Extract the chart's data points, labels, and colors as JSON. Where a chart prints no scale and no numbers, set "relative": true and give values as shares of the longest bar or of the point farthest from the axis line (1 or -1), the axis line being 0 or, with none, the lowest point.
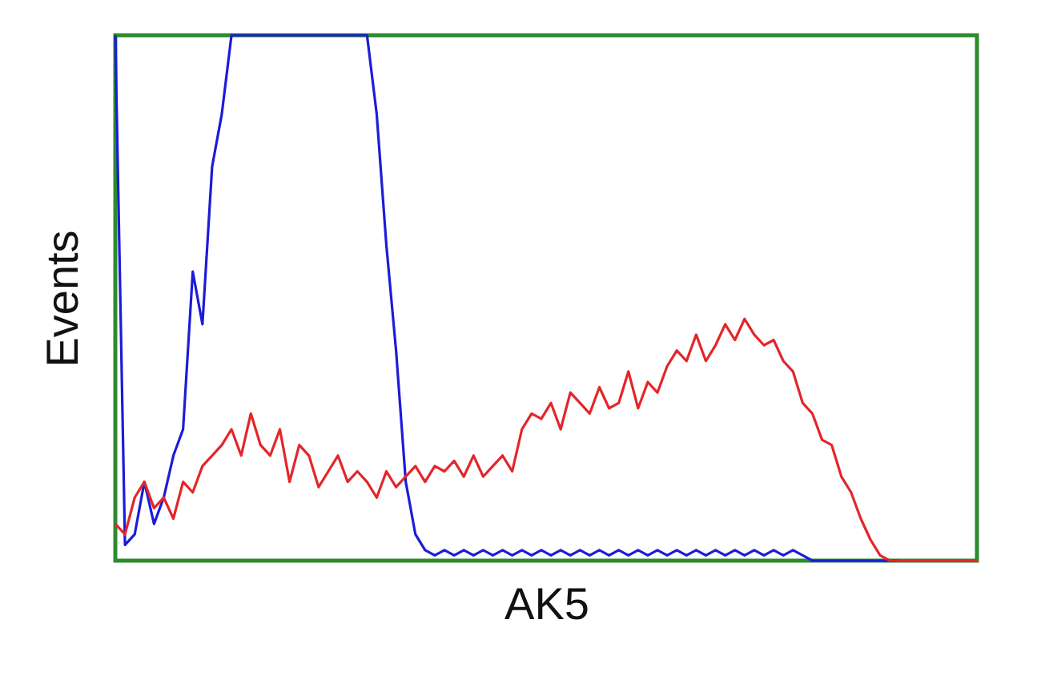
{
  "chart_data": {
    "type": "line",
    "xlabel": "AK5",
    "ylabel": "Events",
    "relative": true,
    "tick_labels": false,
    "grid": false,
    "categories": [
      null,
      null,
      null,
      null,
      null,
      null,
      null,
      null,
      null,
      null,
      null,
      null,
      null,
      null,
      null,
      null,
      null,
      null,
      null,
      null,
      null,
      null,
      null,
      null,
      null,
      null,
      null,
      null,
      null,
      null,
      null,
      null,
      null,
      null,
      null,
      null,
      null,
      null,
      null,
      null,
      null,
      null,
      null,
      null,
      null,
      null,
      null,
      null,
      null,
      null,
      null,
      null,
      null,
      null,
      null,
      null,
      null,
      null,
      null,
      null,
      null,
      null,
      null,
      null,
      null,
      null,
      null,
      null,
      null,
      null,
      null,
      null,
      null,
      null,
      null,
      null,
      null,
      null,
      null,
      null,
      null,
      null,
      null,
      null,
      null,
      null,
      null,
      null,
      null,
      null
    ],
    "series": [
      {
        "color": "#1c1cd8",
        "values": [
          1,
          0.03,
          0.05,
          0.15,
          0.07,
          0.12,
          0.2,
          0.25,
          0.55,
          0.45,
          0.75,
          0.85,
          1,
          1,
          1,
          1,
          1,
          1,
          1,
          1,
          1,
          1,
          1,
          1,
          1,
          1,
          1,
          0.85,
          0.6,
          0.4,
          0.15,
          0.05,
          0.02,
          0.01,
          0.02,
          0.01,
          0.02,
          0.01,
          0.02,
          0.01,
          0.02,
          0.01,
          0.02,
          0.01,
          0.02,
          0.01,
          0.02,
          0.01,
          0.02,
          0.01,
          0.02,
          0.01,
          0.02,
          0.01,
          0.02,
          0.01,
          0.02,
          0.01,
          0.02,
          0.01,
          0.02,
          0.01,
          0.02,
          0.01,
          0.02,
          0.01,
          0.02,
          0.01,
          0.02,
          0.01,
          0.02,
          0.01,
          0,
          0,
          0,
          0,
          0,
          0,
          0,
          0,
          0,
          0,
          null,
          null,
          null,
          null,
          null,
          null,
          null,
          null
        ]
      },
      {
        "color": "#e3262a",
        "values": [
          0.07,
          0.05,
          0.12,
          0.15,
          0.1,
          0.12,
          0.08,
          0.15,
          0.13,
          0.18,
          0.2,
          0.22,
          0.25,
          0.2,
          0.28,
          0.22,
          0.2,
          0.25,
          0.15,
          0.22,
          0.2,
          0.14,
          0.17,
          0.2,
          0.15,
          0.17,
          0.15,
          0.12,
          0.17,
          0.14,
          0.16,
          0.18,
          0.15,
          0.18,
          0.17,
          0.19,
          0.16,
          0.2,
          0.16,
          0.18,
          0.2,
          0.17,
          0.25,
          0.28,
          0.27,
          0.3,
          0.25,
          0.32,
          0.3,
          0.28,
          0.33,
          0.29,
          0.3,
          0.36,
          0.29,
          0.34,
          0.32,
          0.37,
          0.4,
          0.38,
          0.43,
          0.38,
          0.41,
          0.45,
          0.42,
          0.46,
          0.43,
          0.41,
          0.42,
          0.38,
          0.36,
          0.3,
          0.28,
          0.23,
          0.22,
          0.16,
          0.13,
          0.08,
          0.04,
          0.01,
          0,
          0,
          0,
          0,
          0,
          0,
          0,
          0,
          0,
          0
        ]
      }
    ]
  }
}
